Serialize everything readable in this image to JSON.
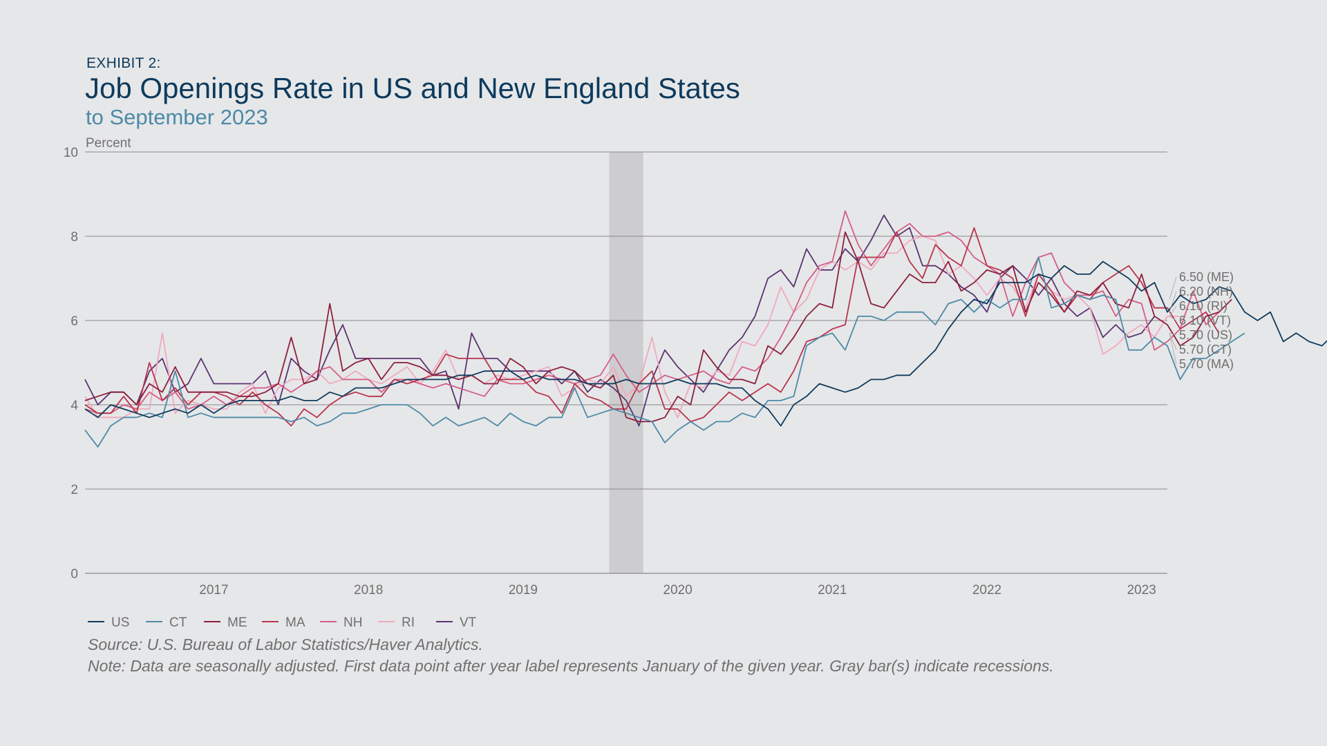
{
  "header": {
    "exhibit": "EXHIBIT 2:",
    "title": "Job Openings Rate in US and New England States",
    "subtitle": "to September 2023"
  },
  "footer": {
    "source": "Source: U.S. Bureau of Labor Statistics/Haver Analytics.",
    "note": "Note: Data are seasonally adjusted. First data point after year label represents January of the given year. Gray bar(s) indicate recessions."
  },
  "colors": {
    "background": "#e6e7e9",
    "recession": "#cdcdcf",
    "grid": "#8a8a8a",
    "axis_text": "#6f6f6f"
  },
  "chart_data": {
    "type": "line",
    "ylabel": "Percent",
    "ylim": [
      0,
      10
    ],
    "yticks": [
      0,
      2,
      4,
      6,
      8,
      10
    ],
    "x_start": "2016-09",
    "x_end": "2023-09",
    "xticks": [
      "2017",
      "2018",
      "2019",
      "2020",
      "2021",
      "2022",
      "2023"
    ],
    "recession": {
      "start": "2020-02",
      "end": "2020-04"
    },
    "legend_position": "bottom-left",
    "grid": true,
    "series": [
      {
        "name": "US",
        "color": "#0d3a5c",
        "end_label": "5.70 (US)",
        "values": [
          3.9,
          3.7,
          4.0,
          3.9,
          3.8,
          3.7,
          3.8,
          3.9,
          3.8,
          4.0,
          3.8,
          4.0,
          4.1,
          4.1,
          4.1,
          4.1,
          4.2,
          4.1,
          4.1,
          4.3,
          4.2,
          4.4,
          4.4,
          4.4,
          4.5,
          4.6,
          4.6,
          4.6,
          4.6,
          4.7,
          4.7,
          4.8,
          4.8,
          4.8,
          4.6,
          4.7,
          4.6,
          4.6,
          4.6,
          4.5,
          4.5,
          4.5,
          4.6,
          4.5,
          4.5,
          4.5,
          4.6,
          4.5,
          4.5,
          4.5,
          4.4,
          4.4,
          4.1,
          3.9,
          3.5,
          4.0,
          4.2,
          4.5,
          4.4,
          4.3,
          4.4,
          4.6,
          4.6,
          4.7,
          4.7,
          5.0,
          5.3,
          5.8,
          6.2,
          6.5,
          6.4,
          6.9,
          6.9,
          6.9,
          7.1,
          7.0,
          7.3,
          7.1,
          7.1,
          7.4,
          7.2,
          7.0,
          6.7,
          6.9,
          6.2,
          6.6,
          6.4,
          6.5,
          6.8,
          6.7,
          6.2,
          6.0,
          6.2,
          5.5,
          5.7,
          5.5,
          5.4,
          5.7,
          5.7
        ]
      },
      {
        "name": "CT",
        "color": "#4d8aa6",
        "end_label": "5.70 (CT)",
        "values": [
          3.4,
          3.0,
          3.5,
          3.7,
          3.7,
          3.8,
          3.7,
          4.8,
          3.7,
          3.8,
          3.7,
          3.7,
          3.7,
          3.7,
          3.7,
          3.7,
          3.6,
          3.7,
          3.5,
          3.6,
          3.8,
          3.8,
          3.9,
          4.0,
          4.0,
          4.0,
          3.8,
          3.5,
          3.7,
          3.5,
          3.6,
          3.7,
          3.5,
          3.8,
          3.6,
          3.5,
          3.7,
          3.7,
          4.4,
          3.7,
          3.8,
          3.9,
          3.8,
          3.7,
          3.6,
          3.1,
          3.4,
          3.6,
          3.4,
          3.6,
          3.6,
          3.8,
          3.7,
          4.1,
          4.1,
          4.2,
          5.4,
          5.6,
          5.7,
          5.3,
          6.1,
          6.1,
          6.0,
          6.2,
          6.2,
          6.2,
          5.9,
          6.4,
          6.5,
          6.2,
          6.5,
          6.3,
          6.5,
          6.5,
          7.5,
          6.3,
          6.4,
          6.6,
          6.5,
          6.6,
          6.5,
          5.3,
          5.3,
          5.6,
          5.4,
          4.6,
          5.1,
          5.1,
          5.3,
          5.5,
          5.7
        ]
      },
      {
        "name": "ME",
        "color": "#8c1e3c",
        "end_label": "6.50 (ME)",
        "values": [
          4.1,
          4.2,
          4.3,
          4.3,
          4.0,
          4.5,
          4.3,
          4.9,
          4.3,
          4.3,
          4.3,
          4.3,
          4.2,
          4.2,
          4.3,
          4.5,
          5.6,
          4.5,
          4.6,
          6.4,
          4.8,
          5.0,
          5.1,
          4.6,
          5.0,
          5.0,
          4.9,
          4.7,
          4.7,
          4.6,
          4.7,
          4.5,
          4.5,
          5.1,
          4.9,
          4.5,
          4.8,
          4.9,
          4.8,
          4.5,
          4.4,
          4.7,
          3.7,
          3.6,
          3.6,
          3.7,
          4.2,
          4.0,
          5.3,
          4.9,
          4.6,
          4.6,
          4.5,
          5.4,
          5.2,
          5.6,
          6.1,
          6.4,
          6.3,
          8.1,
          7.4,
          6.4,
          6.3,
          6.7,
          7.1,
          6.9,
          6.9,
          7.4,
          6.7,
          6.9,
          7.2,
          7.1,
          7.3,
          6.2,
          6.9,
          6.6,
          6.2,
          6.7,
          6.6,
          6.9,
          6.4,
          6.3,
          7.1,
          6.1,
          5.9,
          5.4,
          5.6,
          6.1,
          6.2,
          6.5
        ]
      },
      {
        "name": "MA",
        "color": "#b8344c",
        "end_label": "5.70 (MA)",
        "values": [
          4.0,
          3.8,
          3.8,
          4.2,
          3.8,
          5.0,
          4.1,
          4.4,
          4.0,
          4.3,
          4.3,
          4.2,
          4.0,
          4.3,
          4.0,
          3.8,
          3.5,
          3.9,
          3.7,
          4.0,
          4.2,
          4.3,
          4.2,
          4.2,
          4.6,
          4.5,
          4.6,
          4.7,
          5.2,
          5.1,
          5.1,
          5.1,
          4.6,
          4.6,
          4.6,
          4.3,
          4.2,
          3.8,
          4.5,
          4.2,
          4.1,
          3.9,
          3.9,
          4.5,
          4.8,
          3.9,
          3.9,
          3.6,
          3.7,
          4.0,
          4.3,
          4.1,
          4.3,
          4.5,
          4.3,
          4.8,
          5.5,
          5.6,
          5.8,
          5.9,
          7.5,
          7.5,
          7.5,
          8.1,
          7.4,
          7.0,
          7.8,
          7.5,
          7.3,
          8.2,
          7.3,
          7.2,
          7.0,
          6.1,
          7.1,
          6.7,
          6.2,
          6.6,
          6.5,
          6.9,
          7.1,
          7.3,
          6.9,
          6.3,
          6.3,
          5.8,
          6.0,
          6.2,
          5.7
        ]
      },
      {
        "name": "NH",
        "color": "#d45d84",
        "end_label": "6.20 (NH)",
        "values": [
          3.9,
          3.8,
          3.8,
          4.0,
          3.9,
          4.3,
          4.1,
          4.3,
          3.9,
          4.0,
          4.2,
          4.0,
          4.2,
          4.4,
          4.4,
          4.5,
          4.3,
          4.5,
          4.8,
          4.9,
          4.6,
          4.6,
          4.6,
          4.3,
          4.6,
          4.6,
          4.5,
          4.4,
          4.5,
          4.4,
          4.3,
          4.2,
          4.6,
          4.5,
          4.5,
          4.6,
          4.7,
          4.6,
          4.5,
          4.6,
          4.7,
          5.2,
          4.7,
          4.3,
          4.5,
          4.7,
          4.6,
          4.7,
          4.8,
          4.6,
          4.5,
          4.9,
          4.8,
          5.1,
          5.6,
          6.2,
          6.9,
          7.3,
          7.4,
          8.6,
          7.8,
          7.3,
          7.7,
          8.1,
          8.3,
          8.0,
          8.0,
          8.1,
          7.9,
          7.5,
          7.3,
          7.1,
          6.1,
          6.9,
          7.5,
          7.6,
          6.9,
          6.6,
          6.6,
          6.7,
          6.1,
          6.5,
          6.4,
          5.3,
          5.5,
          5.8,
          6.7,
          5.9,
          6.2
        ]
      },
      {
        "name": "RI",
        "color": "#f0a9be",
        "end_label": "6.10 (RI)",
        "values": [
          4.2,
          3.7,
          3.7,
          3.7,
          3.9,
          3.9,
          5.7,
          3.8,
          4.1,
          4.0,
          3.9,
          3.9,
          4.3,
          4.5,
          3.8,
          4.4,
          4.6,
          4.6,
          4.8,
          4.5,
          4.6,
          4.8,
          4.6,
          4.5,
          4.7,
          4.9,
          4.5,
          4.8,
          5.3,
          4.6,
          4.7,
          4.5,
          4.7,
          4.6,
          4.7,
          4.8,
          4.9,
          4.2,
          4.4,
          4.6,
          4.5,
          4.9,
          4.2,
          4.5,
          5.6,
          4.3,
          3.7,
          4.5,
          4.4,
          4.8,
          4.7,
          5.5,
          5.4,
          5.9,
          6.8,
          6.2,
          6.5,
          7.2,
          7.4,
          7.2,
          7.4,
          7.2,
          7.6,
          7.6,
          7.9,
          8.0,
          7.9,
          7.1,
          7.3,
          7.0,
          6.6,
          7.0,
          6.8,
          6.3,
          7.1,
          6.7,
          6.5,
          6.6,
          6.3,
          5.2,
          5.4,
          5.7,
          5.9,
          5.6,
          6.1,
          6.1
        ]
      },
      {
        "name": "VT",
        "color": "#5a3370",
        "end_label": "6.10 (VT)",
        "values": [
          4.6,
          4.0,
          4.3,
          4.3,
          4.0,
          4.8,
          5.1,
          4.3,
          4.5,
          5.1,
          4.5,
          4.5,
          4.5,
          4.5,
          4.8,
          4.0,
          5.1,
          4.8,
          4.6,
          5.3,
          5.9,
          5.1,
          5.1,
          5.1,
          5.1,
          5.1,
          5.1,
          4.7,
          4.8,
          3.9,
          5.7,
          5.1,
          5.1,
          4.8,
          4.8,
          4.8,
          4.8,
          4.5,
          4.8,
          4.3,
          4.6,
          4.4,
          4.1,
          3.5,
          4.6,
          5.3,
          4.9,
          4.6,
          4.3,
          4.8,
          5.3,
          5.6,
          6.1,
          7.0,
          7.2,
          6.8,
          7.7,
          7.2,
          7.2,
          7.7,
          7.4,
          7.9,
          8.5,
          8.0,
          8.2,
          7.3,
          7.3,
          7.1,
          6.8,
          6.6,
          6.2,
          7.0,
          7.3,
          7.0,
          6.6,
          7.0,
          6.4,
          6.1,
          6.3,
          5.6,
          5.9,
          5.6,
          5.7,
          6.1
        ]
      }
    ]
  }
}
